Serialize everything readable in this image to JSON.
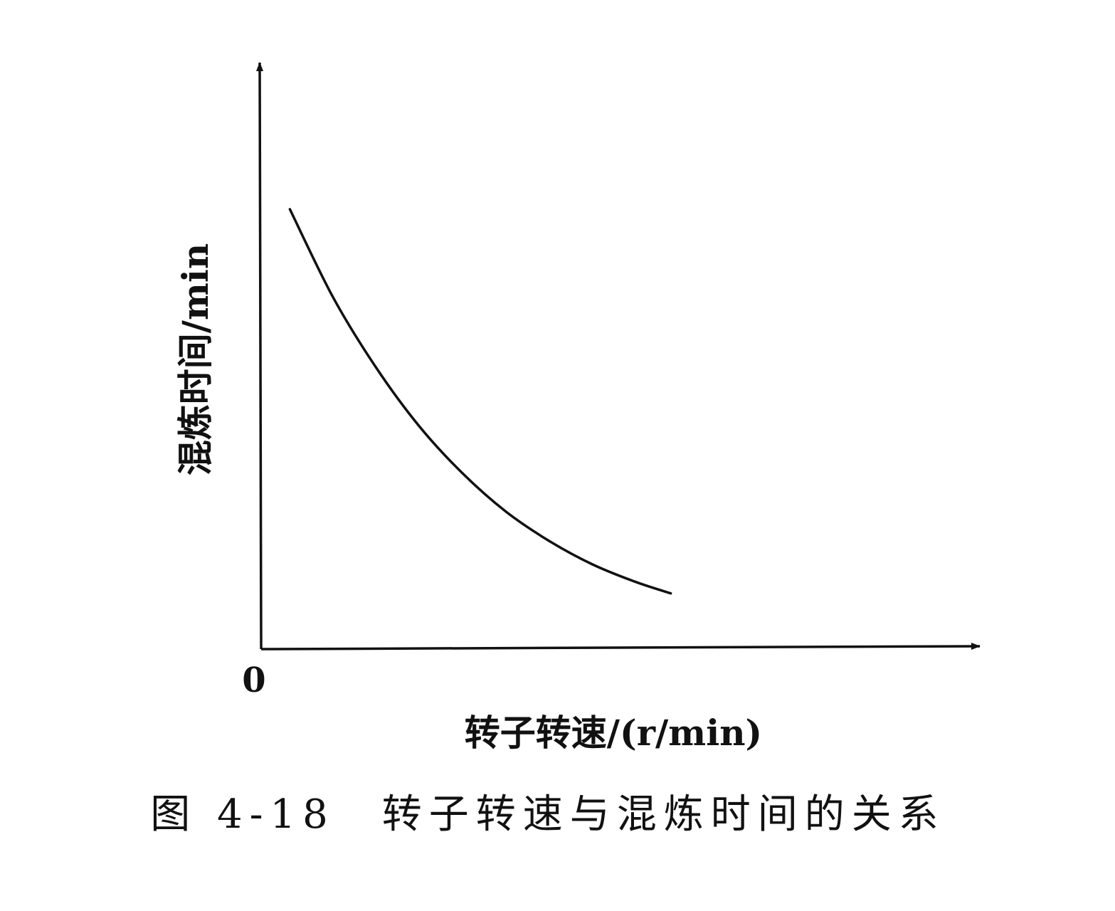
{
  "chart_data": {
    "type": "line",
    "title": "",
    "caption": "图 4-18　转子转速与混炼时间的关系",
    "xlabel": "转子转速/(r/min)",
    "ylabel": "混炼时间/min",
    "origin_label": "0",
    "xlim": [
      0,
      100
    ],
    "ylim": [
      0,
      100
    ],
    "grid": false,
    "legend": "none",
    "x_tick_labels": [],
    "y_tick_labels": [],
    "series": [
      {
        "x": [
          4,
          10,
          16,
          22,
          28,
          34,
          40,
          46,
          52,
          57
        ],
        "y": [
          75,
          60,
          48,
          38,
          30,
          23.5,
          18.5,
          14.5,
          11.5,
          9.5
        ]
      }
    ],
    "colors": {
      "line": "#111111",
      "axis": "#111111",
      "text": "#111111"
    }
  }
}
